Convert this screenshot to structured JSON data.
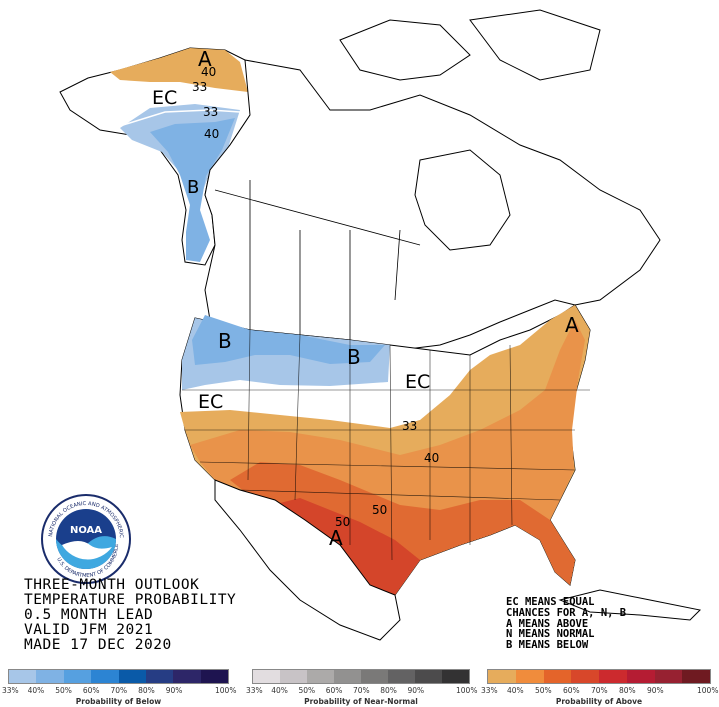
{
  "title_lines": [
    "THREE-MONTH OUTLOOK",
    "TEMPERATURE PROBABILITY",
    "0.5 MONTH LEAD",
    "VALID JFM 2021",
    "MADE 17 DEC 2020"
  ],
  "legend_lines": [
    "EC MEANS EQUAL",
    "CHANCES FOR A, N, B",
    "A MEANS ABOVE",
    "N MEANS NORMAL",
    "B MEANS BELOW"
  ],
  "map_labels": {
    "alaska_a": "A",
    "alaska_40": "40",
    "alaska_33_north": "33",
    "alaska_ec": "EC",
    "alaska_33_south": "33",
    "alaska_40_south": "40",
    "alaska_b": "B",
    "nw_b": "B",
    "plains_b": "B",
    "ec_west": "EC",
    "ec_great_lakes": "EC",
    "ne_a": "A",
    "conus_33": "33",
    "conus_40": "40",
    "conus_50_east": "50",
    "conus_50_west": "50",
    "sw_a": "A"
  },
  "noaa_logo": {
    "center_text": "NOAA",
    "ring_text_top": "NATIONAL OCEANIC AND ATMOSPHERIC ADMINISTRATION",
    "ring_text_bottom": "U.S. DEPARTMENT OF COMMERCE"
  },
  "bars": [
    {
      "label": "Probability of Below",
      "colors": [
        "#a7c6e8",
        "#7fb2e4",
        "#56a0e0",
        "#2c84d3",
        "#0a5aa8",
        "#263d84",
        "#2d2668",
        "#1e1450"
      ],
      "ticks": [
        "33%",
        "40%",
        "50%",
        "60%",
        "70%",
        "80%",
        "90%",
        "100%"
      ]
    },
    {
      "label": "Probability of Near-Normal",
      "colors": [
        "#e2dde0",
        "#c8c3c6",
        "#acaaa9",
        "#929190",
        "#7a7978",
        "#636263",
        "#4c4b4c",
        "#333233"
      ],
      "ticks": [
        "33%",
        "40%",
        "50%",
        "60%",
        "70%",
        "80%",
        "90%",
        "100%"
      ]
    },
    {
      "label": "Probability of Above",
      "colors": [
        "#e6ac5c",
        "#f08c3c",
        "#e4642a",
        "#d8472a",
        "#cc2a2e",
        "#b51c33",
        "#972131",
        "#6f1a21"
      ],
      "ticks": [
        "33%",
        "40%",
        "50%",
        "60%",
        "70%",
        "80%",
        "90%",
        "100%"
      ]
    }
  ],
  "colors": {
    "below_33": "#a7c6e8",
    "below_40": "#7fb2e4",
    "above_33": "#e6ac5c",
    "above_40": "#e9934a",
    "above_50": "#e06a32",
    "above_60": "#d4452a"
  }
}
